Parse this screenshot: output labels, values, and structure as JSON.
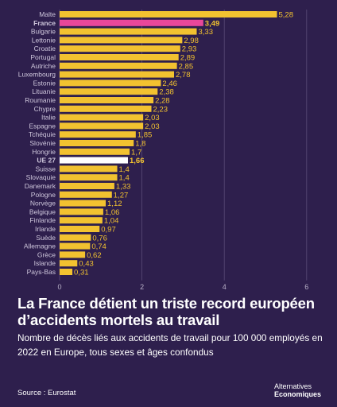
{
  "chart_data": {
    "type": "bar",
    "orientation": "horizontal",
    "categories": [
      "Malte",
      "France",
      "Bulgarie",
      "Lettonie",
      "Croatie",
      "Portugal",
      "Autriche",
      "Luxembourg",
      "Estonie",
      "Lituanie",
      "Roumanie",
      "Chypre",
      "Italie",
      "Espagne",
      "Tchéquie",
      "Slovénie",
      "Hongrie",
      "UE 27",
      "Suisse",
      "Slovaquie",
      "Danemark",
      "Pologne",
      "Norvège",
      "Belgique",
      "Finlande",
      "Irlande",
      "Suède",
      "Allemagne",
      "Grèce",
      "Islande",
      "Pays-Bas"
    ],
    "values": [
      5.28,
      3.49,
      3.33,
      2.98,
      2.93,
      2.89,
      2.85,
      2.78,
      2.46,
      2.38,
      2.28,
      2.23,
      2.03,
      2.03,
      1.85,
      1.8,
      1.7,
      1.66,
      1.4,
      1.4,
      1.33,
      1.27,
      1.12,
      1.06,
      1.04,
      0.97,
      0.76,
      0.74,
      0.62,
      0.43,
      0.31
    ],
    "value_labels": [
      "5,28",
      "3,49",
      "3,33",
      "2,98",
      "2,93",
      "2,89",
      "2,85",
      "2,78",
      "2,46",
      "2,38",
      "2,28",
      "2,23",
      "2,03",
      "2,03",
      "1,85",
      "1,8",
      "1,7",
      "1,66",
      "1,4",
      "1,4",
      "1,33",
      "1,27",
      "1,12",
      "1,06",
      "1,04",
      "0,97",
      "0,76",
      "0,74",
      "0,62",
      "0,43",
      "0,31"
    ],
    "highlight": {
      "France": "#e8479a",
      "UE 27": "#ffffff"
    },
    "xlim": [
      0,
      6
    ],
    "xticks": [
      "0",
      "2",
      "4",
      "6"
    ],
    "grid": true,
    "title": "La France détient un triste record européen d’accidents mortels au travail",
    "subtitle": "Nombre de décès liés aux accidents de travail pour 100 000 employés en 2022 en Europe, tous sexes et âges confondus",
    "xlabel": "",
    "ylabel": ""
  },
  "source": "Source : Eurostat",
  "brand": {
    "line1": "Alternatives",
    "line2": "Economiques"
  },
  "colors": {
    "background": "#2e1f4d",
    "bar": "#f2c230",
    "france": "#e8479a",
    "eu": "#ffffff",
    "grid": "#5a4b78"
  }
}
